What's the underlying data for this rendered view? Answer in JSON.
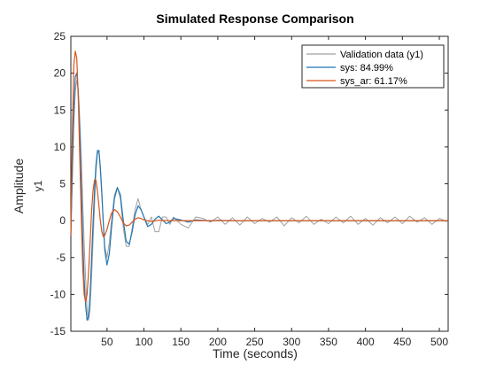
{
  "chart_data": {
    "type": "line",
    "title": "Simulated Response Comparison",
    "xlabel": "Time (seconds)",
    "ylabel": "Amplitude",
    "channel_label": "y1",
    "xlim": [
      1,
      512
    ],
    "ylim": [
      -15,
      25
    ],
    "x_ticks": [
      50,
      100,
      150,
      200,
      250,
      300,
      350,
      400,
      450,
      500
    ],
    "y_ticks": [
      -15,
      -10,
      -5,
      0,
      5,
      10,
      15,
      20,
      25
    ],
    "grid": false,
    "legend_position": "top-right",
    "series": [
      {
        "name": "Validation data (y1)",
        "color": "#a0a0a0",
        "description": "noisy measured response",
        "x": [
          1,
          3,
          5,
          7,
          9,
          11,
          13,
          15,
          17,
          19,
          21,
          23,
          25,
          27,
          29,
          31,
          33,
          35,
          37,
          39,
          41,
          43,
          45,
          47,
          50,
          53,
          56,
          60,
          64,
          68,
          72,
          76,
          80,
          84,
          88,
          92,
          96,
          100,
          105,
          110,
          115,
          120,
          125,
          130,
          135,
          140,
          150,
          160,
          170,
          180,
          190,
          200,
          210,
          220,
          230,
          240,
          250,
          260,
          270,
          280,
          290,
          300,
          310,
          320,
          330,
          340,
          350,
          360,
          370,
          380,
          390,
          400,
          410,
          420,
          430,
          440,
          450,
          460,
          470,
          480,
          490,
          500,
          512
        ],
        "y": [
          -2,
          6,
          13,
          17.5,
          19,
          18,
          14,
          9,
          3,
          -3,
          -8,
          -12,
          -13.5,
          -12,
          -8,
          -3,
          2,
          6.5,
          9,
          9.5,
          7.5,
          4,
          -0.5,
          -3.5,
          -5,
          -3,
          0,
          3.5,
          4.5,
          3,
          -1,
          -3.5,
          -3.5,
          -1,
          1.5,
          3,
          1.5,
          0.5,
          -0.5,
          0.5,
          -1.5,
          -1.5,
          0.5,
          0.5,
          -0.5,
          0.5,
          -0.5,
          -1,
          0.5,
          0.3,
          -0.2,
          0.5,
          -0.5,
          0.4,
          -0.6,
          0.5,
          -0.4,
          0.3,
          -0.2,
          0.5,
          -0.7,
          0.4,
          -0.3,
          0.6,
          -0.5,
          0.2,
          -0.4,
          0.5,
          -0.3,
          0.6,
          -0.5,
          0.3,
          -0.6,
          0.4,
          -0.3,
          0.5,
          -0.4,
          0.6,
          -0.2,
          0.4,
          -0.5,
          0.3,
          -0.2
        ]
      },
      {
        "name": "sys: 84.99%",
        "color": "#1f77b4",
        "description": "blue simulated model output",
        "x": [
          1,
          3,
          5,
          7,
          9,
          11,
          13,
          15,
          17,
          19,
          21,
          23,
          25,
          27,
          29,
          31,
          33,
          35,
          37,
          39,
          41,
          43,
          45,
          47,
          50,
          53,
          56,
          60,
          64,
          68,
          72,
          76,
          80,
          84,
          88,
          92,
          96,
          100,
          105,
          110,
          115,
          120,
          125,
          130,
          135,
          140,
          150,
          160,
          170,
          180,
          190,
          200,
          220,
          240,
          260,
          280,
          300,
          350,
          400,
          450,
          512
        ],
        "y": [
          -2,
          7,
          15,
          19.5,
          20,
          17.5,
          12,
          5,
          -2,
          -8,
          -11.5,
          -13.5,
          -13,
          -10,
          -5.5,
          -0.5,
          4,
          7.5,
          9.5,
          9.5,
          7,
          3.5,
          -0.5,
          -4,
          -6,
          -4.5,
          -1,
          3,
          4.5,
          3.5,
          0,
          -2.8,
          -3.2,
          -1.5,
          0.8,
          2,
          1.5,
          0.5,
          -0.8,
          -0.5,
          0.2,
          0.6,
          0.1,
          -0.4,
          -0.2,
          0.3,
          0.1,
          -0.2,
          0.1,
          0.05,
          -0.05,
          0.05,
          0,
          0,
          0,
          0,
          0,
          0,
          0,
          0,
          0
        ]
      },
      {
        "name": "sys_ar:  61.17%",
        "color": "#d95319",
        "description": "orange simulated model output",
        "x": [
          1,
          3,
          5,
          7,
          9,
          11,
          13,
          15,
          17,
          19,
          21,
          23,
          25,
          27,
          29,
          31,
          33,
          35,
          37,
          39,
          41,
          43,
          45,
          47,
          50,
          53,
          56,
          60,
          64,
          68,
          72,
          76,
          80,
          84,
          88,
          92,
          96,
          100,
          110,
          120,
          130,
          140,
          160,
          180,
          200,
          250,
          300,
          350,
          400,
          450,
          512
        ],
        "y": [
          -2,
          12,
          21,
          23,
          22,
          17,
          9,
          1,
          -6,
          -10,
          -11,
          -10,
          -7,
          -3,
          1,
          4,
          5.5,
          5.5,
          4,
          2,
          0,
          -1.5,
          -2.2,
          -2,
          -1.2,
          0,
          1,
          1.5,
          1.2,
          0.5,
          -0.3,
          -0.7,
          -0.6,
          -0.2,
          0.2,
          0.4,
          0.3,
          0.1,
          -0.1,
          0.05,
          0,
          0,
          0,
          0,
          0,
          0,
          0,
          0,
          0,
          0,
          0
        ]
      }
    ]
  }
}
